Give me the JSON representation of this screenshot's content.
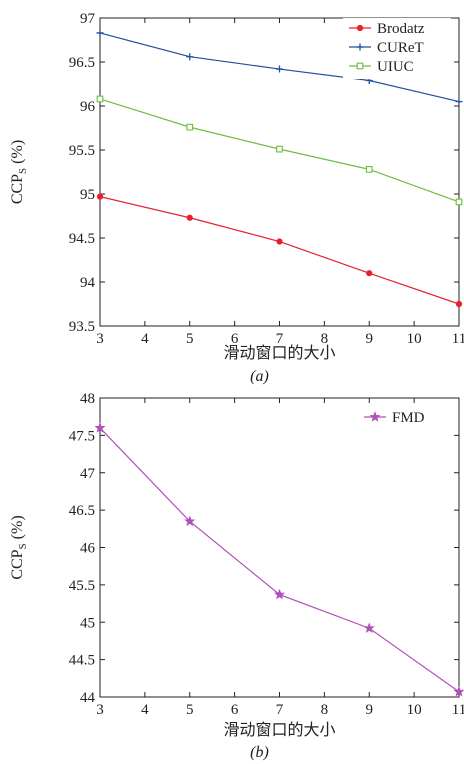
{
  "chart_data": [
    {
      "type": "line",
      "panel": "a",
      "caption": "(a)",
      "xlabel": "滑动窗口的大小",
      "ylabel": "CCP",
      "ylabel_sub": "S",
      "ylabel_suffix": " (%)",
      "xlim": [
        3,
        11
      ],
      "ylim": [
        93.5,
        97
      ],
      "xticks": [
        "3",
        "4",
        "5",
        "6",
        "7",
        "8",
        "9",
        "10",
        "11"
      ],
      "yticks": [
        "93.5",
        "94",
        "94.5",
        "95",
        "95.5",
        "96",
        "96.5",
        "97"
      ],
      "legend_position": "top-right",
      "x": [
        3,
        5,
        7,
        9,
        11
      ],
      "series": [
        {
          "name": "Brodatz",
          "color": "#e8202a",
          "marker": "circle",
          "values": [
            94.97,
            94.73,
            94.46,
            94.1,
            93.75
          ]
        },
        {
          "name": "CUReT",
          "color": "#1f4f9e",
          "marker": "plus",
          "values": [
            96.83,
            96.56,
            96.42,
            96.29,
            96.05
          ]
        },
        {
          "name": "UIUC",
          "color": "#6cbf3f",
          "marker": "square",
          "values": [
            96.08,
            95.76,
            95.51,
            95.28,
            94.91
          ]
        }
      ]
    },
    {
      "type": "line",
      "panel": "b",
      "caption": "(b)",
      "xlabel": "滑动窗口的大小",
      "ylabel": "CCP",
      "ylabel_sub": "S",
      "ylabel_suffix": " (%)",
      "xlim": [
        3,
        11
      ],
      "ylim": [
        44,
        48
      ],
      "xticks": [
        "3",
        "4",
        "5",
        "6",
        "7",
        "8",
        "9",
        "10",
        "11"
      ],
      "yticks": [
        "44",
        "44.5",
        "45",
        "45.5",
        "46",
        "46.5",
        "47",
        "47.5",
        "48"
      ],
      "legend_position": "top-right",
      "x": [
        3,
        5,
        7,
        9,
        11
      ],
      "series": [
        {
          "name": "FMD",
          "color": "#b050b8",
          "marker": "star",
          "values": [
            47.6,
            46.35,
            45.37,
            44.92,
            44.07
          ]
        }
      ]
    }
  ]
}
